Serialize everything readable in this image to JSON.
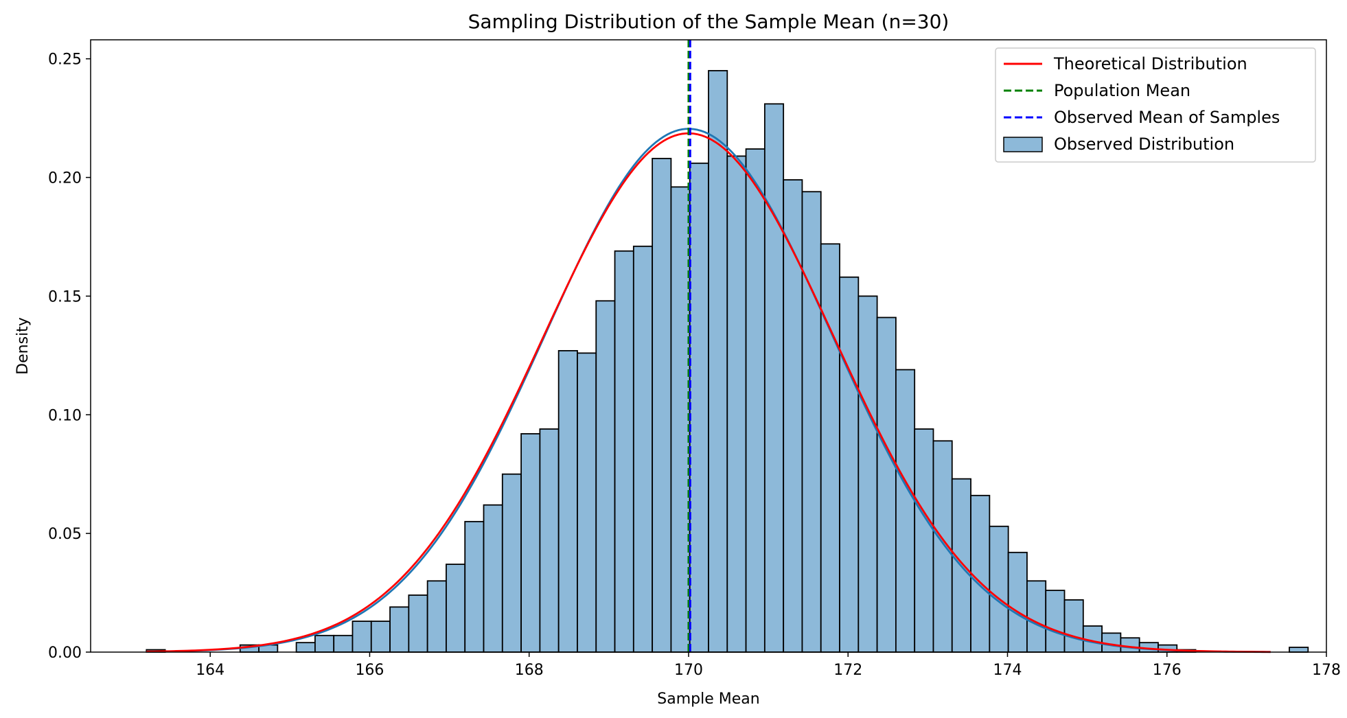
{
  "chart_data": {
    "type": "bar",
    "title": "Sampling Distribution of the Sample Mean (n=30)",
    "xlabel": "Sample Mean",
    "ylabel": "Density",
    "xlim": [
      162.5,
      178
    ],
    "ylim": [
      0,
      0.258
    ],
    "xticks": [
      164,
      166,
      168,
      170,
      172,
      174,
      176,
      178
    ],
    "yticks": [
      0.0,
      0.05,
      0.1,
      0.15,
      0.2,
      0.25
    ],
    "xtick_labels": [
      "164",
      "166",
      "168",
      "170",
      "172",
      "174",
      "176",
      "178"
    ],
    "ytick_labels": [
      "0.00",
      "0.05",
      "0.10",
      "0.15",
      "0.20",
      "0.25"
    ],
    "grid": false,
    "legend_position": "top-right",
    "histogram": {
      "name": "Observed Distribution",
      "color": "#8db9d9",
      "edge_color": "#000000",
      "bin_start": 163.2,
      "bin_width": 0.235,
      "values": [
        0.001,
        0.0,
        0.0,
        0.0,
        0.0,
        0.003,
        0.003,
        0.0,
        0.004,
        0.007,
        0.007,
        0.013,
        0.013,
        0.019,
        0.024,
        0.03,
        0.037,
        0.055,
        0.062,
        0.075,
        0.092,
        0.094,
        0.127,
        0.126,
        0.148,
        0.169,
        0.171,
        0.208,
        0.196,
        0.206,
        0.245,
        0.209,
        0.212,
        0.231,
        0.199,
        0.194,
        0.172,
        0.158,
        0.15,
        0.141,
        0.119,
        0.094,
        0.089,
        0.073,
        0.066,
        0.053,
        0.042,
        0.03,
        0.026,
        0.022,
        0.011,
        0.008,
        0.006,
        0.004,
        0.003,
        0.001,
        0.0,
        0.0,
        0.0,
        0.0,
        0.0,
        0.002,
        0.0
      ]
    },
    "kde": {
      "name": "",
      "color": "#1f77b4",
      "mean": 170.0,
      "std": 1.8,
      "peak": 0.2205
    },
    "theoretical": {
      "name": "Theoretical Distribution",
      "color": "#ff0000",
      "mean": 170.0,
      "std": 1.825,
      "x_range": [
        163.2,
        177.3
      ]
    },
    "population_mean": {
      "name": "Population Mean",
      "color": "#008000",
      "x": 170.0
    },
    "observed_mean": {
      "name": "Observed Mean of Samples",
      "color": "#0000ff",
      "x": 170.02
    },
    "legend": [
      "Theoretical Distribution",
      "Population Mean",
      "Observed Mean of Samples",
      "Observed Distribution"
    ]
  }
}
